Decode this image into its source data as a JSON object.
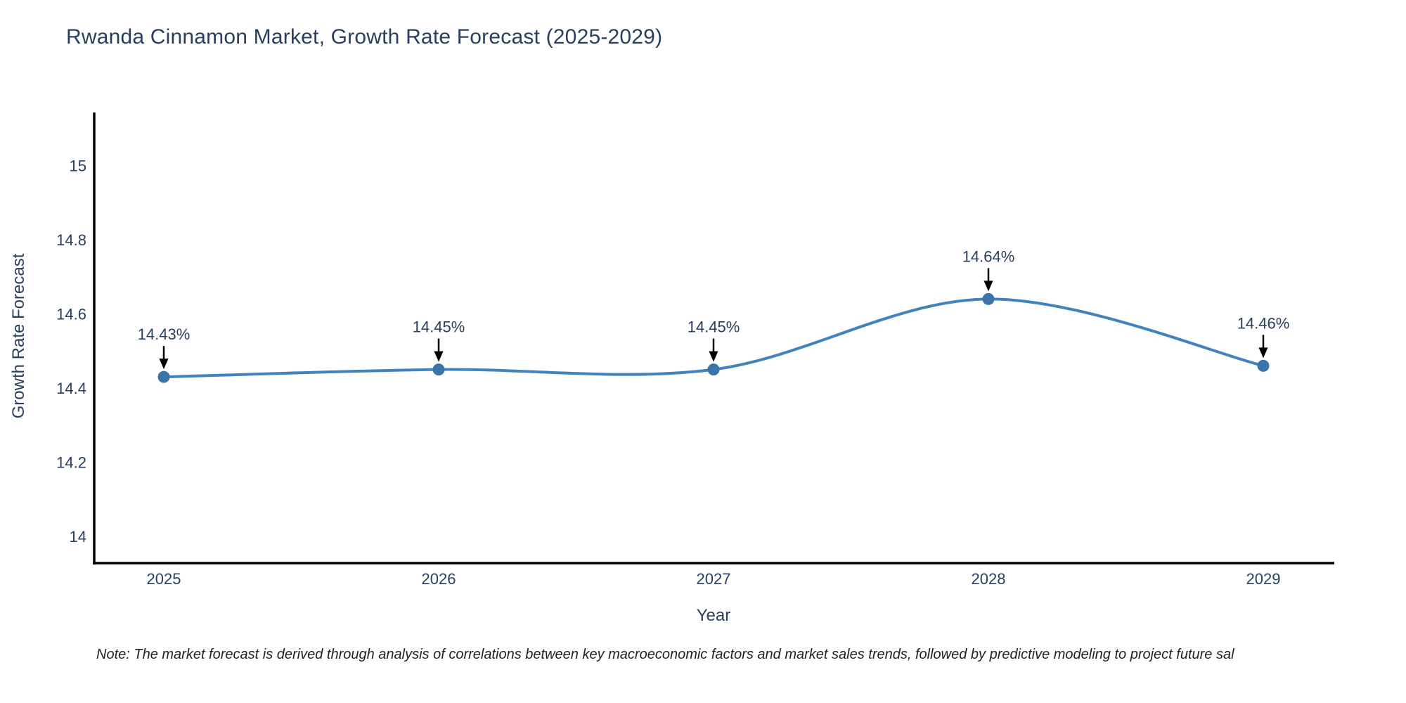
{
  "chart_data": {
    "type": "line",
    "title": "Rwanda Cinnamon Market, Growth Rate Forecast (2025-2029)",
    "xlabel": "Year",
    "ylabel": "Growth Rate Forecast",
    "x": [
      2025,
      2026,
      2027,
      2028,
      2029
    ],
    "values": [
      14.43,
      14.45,
      14.45,
      14.64,
      14.46
    ],
    "point_labels": [
      "14.43%",
      "14.45%",
      "14.45%",
      "14.64%",
      "14.46%"
    ],
    "x_tick_labels": [
      "2025",
      "2026",
      "2027",
      "2028",
      "2029"
    ],
    "y_ticks": [
      15,
      14.8,
      14.6,
      14.4,
      14.2,
      14
    ],
    "y_tick_labels": [
      "15",
      "14.8",
      "14.6",
      "14.4",
      "14.2",
      "14"
    ],
    "ylim": [
      13.93,
      15.14
    ],
    "xlim": [
      2024.75,
      2029.28
    ],
    "grid": false,
    "legend": "none",
    "line_shape": "spline",
    "annotations_have_arrows": true,
    "colors": {
      "line": "#4282bd",
      "marker": "#3a74a8",
      "axis": "#000000",
      "text": "#2a3f5f",
      "arrow": "#000000",
      "note": "#222222"
    }
  },
  "note": {
    "text": "Note: The market forecast is derived through analysis of correlations between key macroeconomic factors and market sales trends, followed by predictive modeling to project future sal"
  }
}
